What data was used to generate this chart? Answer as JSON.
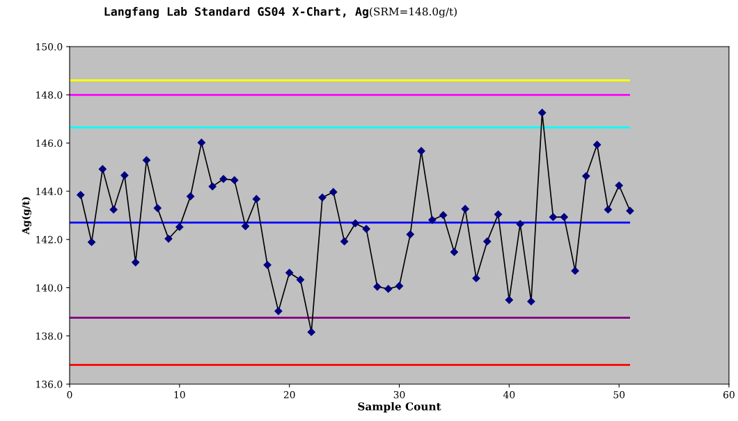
{
  "chart_data": {
    "type": "line",
    "title": "Langfang Lab Standard GS04 X-Chart, Ag",
    "subtitle": "(SRM=148.0g/t)",
    "xlabel": "Sample Count",
    "ylabel": "Ag(g/t)",
    "x": [
      1,
      2,
      3,
      4,
      5,
      6,
      7,
      8,
      9,
      10,
      11,
      12,
      13,
      14,
      15,
      16,
      17,
      18,
      19,
      20,
      21,
      22,
      23,
      24,
      25,
      26,
      27,
      28,
      29,
      30,
      31,
      32,
      33,
      34,
      35,
      36,
      37,
      38,
      39,
      40,
      41,
      42,
      43,
      44,
      45,
      46,
      47,
      48,
      49,
      50,
      51
    ],
    "series": [
      {
        "color": "#000080",
        "values": [
          143.85,
          141.89,
          144.92,
          143.24,
          144.66,
          141.05,
          145.29,
          143.3,
          142.03,
          142.52,
          143.79,
          146.02,
          144.2,
          144.51,
          144.46,
          142.55,
          143.68,
          140.94,
          139.03,
          140.62,
          140.33,
          138.16,
          143.74,
          143.97,
          141.92,
          142.67,
          142.44,
          140.04,
          139.95,
          140.07,
          142.21,
          145.67,
          142.81,
          143.01,
          141.48,
          143.27,
          140.39,
          141.92,
          143.04,
          139.49,
          142.64,
          139.43,
          147.26,
          142.93,
          142.93,
          140.7,
          144.63,
          145.93,
          143.24,
          144.24,
          143.19
        ]
      }
    ],
    "marker": "diamond",
    "line_style": "solid",
    "grid": false,
    "legend": false,
    "xlim": [
      0,
      60
    ],
    "xticks": [
      0,
      10,
      20,
      30,
      40,
      50,
      60
    ],
    "ylim": [
      136.0,
      150.0
    ],
    "yticks": [
      {
        "value": 136,
        "label": "136.0"
      },
      {
        "value": 138,
        "label": "138.0"
      },
      {
        "value": 140,
        "label": "140.0"
      },
      {
        "value": 142,
        "label": "142.0"
      },
      {
        "value": 144,
        "label": "144.0"
      },
      {
        "value": 146,
        "label": "146.0"
      },
      {
        "value": 148,
        "label": "148.0"
      },
      {
        "value": 150,
        "label": "150.0"
      }
    ],
    "ref_lines": [
      {
        "axis": "y",
        "value": 148.6,
        "color": "#ffff00"
      },
      {
        "axis": "y",
        "value": 148.0,
        "color": "#ff00ff"
      },
      {
        "axis": "y",
        "value": 146.65,
        "color": "#00ffff"
      },
      {
        "axis": "y",
        "value": 142.7,
        "color": "#0000ff"
      },
      {
        "axis": "y",
        "value": 138.75,
        "color": "#800080"
      },
      {
        "axis": "y",
        "value": 136.8,
        "color": "#ff0000"
      }
    ]
  }
}
